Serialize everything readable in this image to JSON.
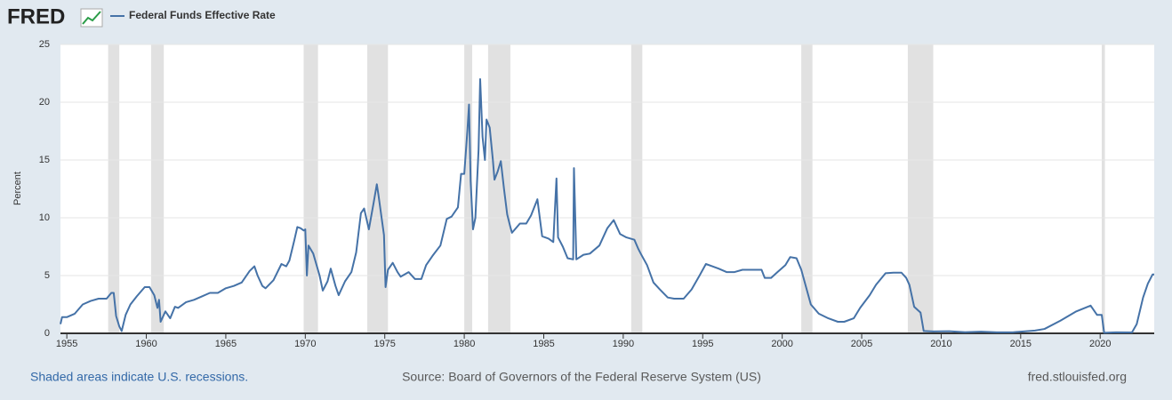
{
  "logo": "FRED",
  "footer": {
    "note": "Shaded areas indicate U.S. recessions.",
    "source": "Source: Board of Governors of the Federal Reserve System (US)",
    "site": "fred.stlouisfed.org"
  },
  "chart_data": {
    "type": "line",
    "y_label": "Percent",
    "grid": true,
    "xlim": [
      1954.6,
      2023.4
    ],
    "xticks": [
      1955,
      1960,
      1965,
      1970,
      1975,
      1980,
      1985,
      1990,
      1995,
      2000,
      2005,
      2010,
      2015,
      2020
    ],
    "ylim": [
      0,
      25
    ],
    "yticks": [
      0,
      5,
      10,
      15,
      20,
      25
    ],
    "recessions": [
      [
        1957.6,
        1958.3
      ],
      [
        1960.3,
        1961.1
      ],
      [
        1969.9,
        1970.8
      ],
      [
        1973.9,
        1975.2
      ],
      [
        1980.0,
        1980.5
      ],
      [
        1981.5,
        1982.9
      ],
      [
        1990.5,
        1991.2
      ],
      [
        2001.2,
        2001.9
      ],
      [
        2007.9,
        2009.5
      ],
      [
        2020.1,
        2020.3
      ]
    ],
    "recession_color": "#e1e1e1",
    "x": [
      1954.6,
      1954.7,
      1955,
      1955.5,
      1956,
      1956.5,
      1957,
      1957.5,
      1957.8,
      1957.95,
      1958.1,
      1958.3,
      1958.45,
      1958.7,
      1959,
      1959.4,
      1959.9,
      1960.2,
      1960.5,
      1960.7,
      1960.8,
      1960.9,
      1961.2,
      1961.5,
      1961.8,
      1962,
      1962.5,
      1963,
      1963.5,
      1964,
      1964.5,
      1965,
      1965.5,
      1966,
      1966.5,
      1966.8,
      1967,
      1967.3,
      1967.5,
      1968,
      1968.5,
      1968.8,
      1969,
      1969.3,
      1969.5,
      1969.7,
      1969.9,
      1970,
      1970.1,
      1970.2,
      1970.5,
      1970.9,
      1971.1,
      1971.4,
      1971.6,
      1971.9,
      1972.1,
      1972.5,
      1972.9,
      1973.2,
      1973.5,
      1973.7,
      1974,
      1974.3,
      1974.5,
      1974.6,
      1974.8,
      1974.95,
      1975.05,
      1975.2,
      1975.5,
      1975.8,
      1976,
      1976.5,
      1976.9,
      1977.3,
      1977.6,
      1978,
      1978.5,
      1978.9,
      1979.2,
      1979.6,
      1979.8,
      1980,
      1980.2,
      1980.3,
      1980.4,
      1980.55,
      1980.7,
      1980.9,
      1981,
      1981.15,
      1981.3,
      1981.4,
      1981.6,
      1981.8,
      1981.9,
      1982.1,
      1982.3,
      1982.5,
      1982.7,
      1982.9,
      1983,
      1983.5,
      1983.9,
      1984.2,
      1984.6,
      1984.9,
      1985.3,
      1985.6,
      1985.8,
      1985.9,
      1986.2,
      1986.5,
      1986.85,
      1986.9,
      1987.05,
      1987.5,
      1987.9,
      1988.5,
      1989,
      1989.4,
      1989.8,
      1990.2,
      1990.7,
      1990.95,
      1991.1,
      1991.5,
      1991.9,
      1992.3,
      1992.8,
      1993.2,
      1993.8,
      1994.3,
      1994.8,
      1995.2,
      1995.6,
      1996,
      1996.5,
      1997,
      1997.5,
      1998,
      1998.7,
      1998.9,
      1999.3,
      1999.7,
      2000.2,
      2000.5,
      2000.9,
      2001.2,
      2001.5,
      2001.8,
      2002.3,
      2002.9,
      2003.5,
      2003.9,
      2004.5,
      2004.9,
      2005.5,
      2005.9,
      2006.5,
      2007,
      2007.5,
      2007.8,
      2008,
      2008.3,
      2008.7,
      2008.9,
      2009.5,
      2010.5,
      2011.5,
      2012.5,
      2013.5,
      2014.5,
      2015.9,
      2016.5,
      2017.5,
      2018.5,
      2019.4,
      2019.8,
      2020.1,
      2020.25,
      2021,
      2022,
      2022.3,
      2022.7,
      2023,
      2023.3,
      2023.4
    ],
    "series": [
      {
        "name": "Federal Funds Effective Rate",
        "color": "#4572a7",
        "values": [
          0.8,
          1.4,
          1.4,
          1.7,
          2.5,
          2.8,
          3.0,
          3.0,
          3.5,
          3.5,
          1.5,
          0.6,
          0.2,
          1.6,
          2.5,
          3.2,
          4.0,
          4.0,
          3.3,
          2.2,
          2.9,
          1.0,
          1.9,
          1.3,
          2.3,
          2.2,
          2.7,
          2.9,
          3.2,
          3.5,
          3.5,
          3.9,
          4.1,
          4.4,
          5.4,
          5.8,
          5.0,
          4.1,
          3.9,
          4.6,
          6.0,
          5.8,
          6.3,
          8.0,
          9.2,
          9.1,
          8.9,
          9.0,
          5.0,
          7.6,
          6.9,
          5.0,
          3.7,
          4.5,
          5.6,
          4.1,
          3.3,
          4.5,
          5.3,
          7.0,
          10.4,
          10.8,
          9.0,
          11.3,
          12.9,
          12.0,
          10.0,
          8.5,
          4.0,
          5.5,
          6.1,
          5.3,
          4.9,
          5.3,
          4.7,
          4.7,
          5.9,
          6.7,
          7.6,
          9.9,
          10.1,
          10.9,
          13.8,
          13.8,
          17.6,
          19.8,
          13.2,
          9.0,
          10.0,
          15.9,
          22.0,
          17.0,
          15.0,
          18.5,
          17.8,
          15.0,
          13.3,
          14.0,
          14.9,
          12.5,
          10.3,
          9.2,
          8.7,
          9.5,
          9.5,
          10.2,
          11.6,
          8.4,
          8.2,
          7.9,
          13.4,
          8.3,
          7.5,
          6.5,
          6.4,
          14.3,
          6.4,
          6.8,
          6.9,
          7.6,
          9.1,
          9.8,
          8.6,
          8.3,
          8.1,
          7.3,
          6.9,
          5.9,
          4.4,
          3.8,
          3.1,
          3.0,
          3.0,
          3.8,
          5.0,
          6.0,
          5.8,
          5.6,
          5.3,
          5.3,
          5.5,
          5.5,
          5.5,
          4.8,
          4.8,
          5.3,
          5.9,
          6.6,
          6.5,
          5.5,
          4.0,
          2.5,
          1.7,
          1.3,
          1.0,
          1.0,
          1.3,
          2.2,
          3.3,
          4.2,
          5.2,
          5.25,
          5.25,
          4.8,
          4.2,
          2.3,
          1.8,
          0.2,
          0.16,
          0.18,
          0.1,
          0.14,
          0.09,
          0.09,
          0.24,
          0.38,
          1.1,
          1.9,
          2.4,
          1.6,
          1.6,
          0.05,
          0.09,
          0.08,
          0.8,
          3.1,
          4.3,
          5.1,
          5.1
        ]
      }
    ]
  }
}
